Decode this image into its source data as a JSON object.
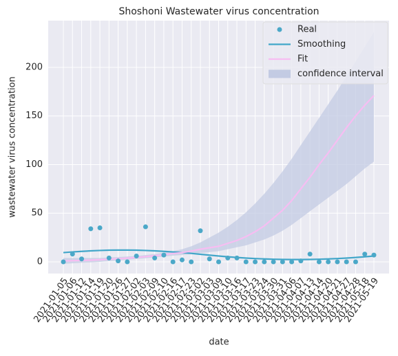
{
  "chart_data": {
    "type": "line",
    "title": "Shoshoni Wastewater virus concentration",
    "xlabel": "date",
    "ylabel": "wastewater virus concentration",
    "categories": [
      "2021-01-05",
      "2021-01-06",
      "2021-01-12",
      "2021-01-14",
      "2021-01-19",
      "2021-01-20",
      "2021-01-26",
      "2021-01-27",
      "2021-02-02",
      "2021-02-03",
      "2021-02-09",
      "2021-02-10",
      "2021-02-16",
      "2021-02-17",
      "2021-02-23",
      "2021-03-02",
      "2021-03-03",
      "2021-03-09",
      "2021-03-10",
      "2021-03-16",
      "2021-03-17",
      "2021-03-23",
      "2021-03-24",
      "2021-03-30",
      "2021-03-31",
      "2021-04-06",
      "2021-04-07",
      "2021-04-13",
      "2021-04-14",
      "2021-04-20",
      "2021-04-21",
      "2021-04-27",
      "2021-04-28",
      "2021-05-18",
      "2021-05-19"
    ],
    "ylim": [
      -12,
      248
    ],
    "yticks": [
      0,
      50,
      100,
      150,
      200
    ],
    "grid": true,
    "legend": "upper right",
    "series": [
      {
        "name": "Real",
        "type": "scatter",
        "color": "#4ba8c8",
        "values": [
          0,
          8,
          3,
          34,
          35,
          4,
          1,
          0,
          6,
          36,
          4,
          7,
          0,
          2,
          0,
          32,
          3,
          0,
          4,
          4,
          0,
          0,
          0,
          0,
          0,
          0,
          1,
          8,
          0,
          0,
          0,
          0,
          0,
          8,
          7
        ]
      },
      {
        "name": "Smoothing",
        "type": "line",
        "color": "#41a6c9",
        "values": [
          9.5,
          10.2,
          10.8,
          11.3,
          11.7,
          12,
          12.1,
          12.1,
          12,
          11.7,
          11.3,
          10.8,
          10.2,
          9.5,
          8.7,
          7.8,
          6.9,
          6,
          5.2,
          4.5,
          3.9,
          3.4,
          3,
          2.7,
          2.5,
          2.4,
          2.4,
          2.5,
          2.7,
          3,
          3.4,
          3.9,
          4.5,
          5.2,
          6
        ]
      },
      {
        "name": "Fit",
        "type": "line",
        "color": "#f7bdf2",
        "values": [
          1,
          1.2,
          1.5,
          1.8,
          2.2,
          2.7,
          3.2,
          3.8,
          4.5,
          5.3,
          6.3,
          7.4,
          8.6,
          9.5,
          11,
          13,
          14.5,
          16,
          19,
          22,
          26,
          31,
          37,
          45,
          53,
          63,
          75,
          87,
          100,
          112,
          125,
          138,
          150,
          161,
          171
        ]
      },
      {
        "name": "confidence interval",
        "type": "band",
        "color": "#c3cbe3",
        "upper": [
          4,
          4,
          4,
          4,
          4,
          4.5,
          5,
          5.5,
          6,
          7,
          8,
          9.5,
          11,
          13,
          16,
          20,
          25,
          30,
          36,
          43,
          51,
          60,
          70,
          81,
          93,
          106,
          120,
          134,
          148,
          162,
          176,
          191,
          206,
          221,
          236
        ],
        "lower": [
          -2,
          -1.5,
          -1,
          -0.5,
          0,
          0.8,
          1.5,
          2.2,
          3,
          3.7,
          4.6,
          5.5,
          6.4,
          7,
          8,
          9,
          10,
          11,
          13,
          15,
          17,
          20,
          23,
          27,
          32,
          38,
          45,
          52,
          59,
          66,
          73,
          80,
          88,
          96,
          103
        ]
      }
    ]
  }
}
